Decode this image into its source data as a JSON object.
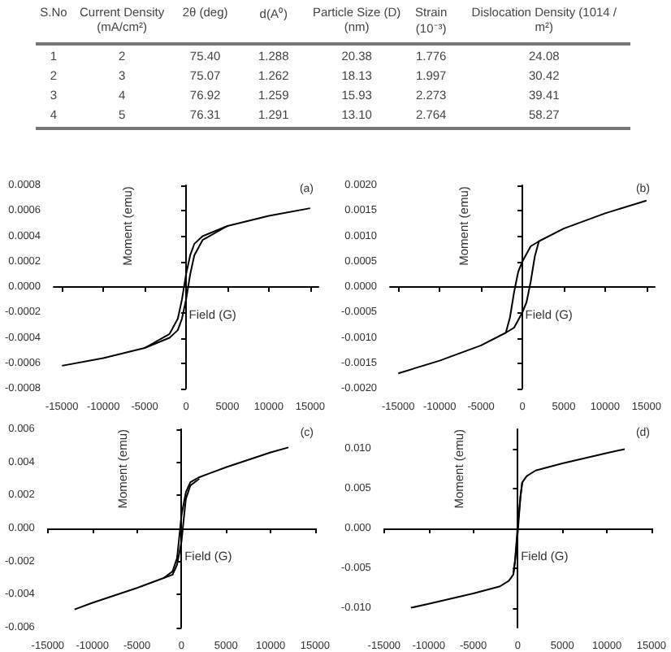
{
  "chart_data": [
    {
      "type": "other",
      "categories": [
        "S.No",
        "Current Density (mA/cm²)",
        "2θ (deg)",
        "d(A⁰)",
        "Particle Size (D)(nm)",
        "Strain (10⁻³)",
        "Dislocation Density (1014 / m²)"
      ],
      "series": [
        {
          "values": [
            1,
            2,
            75.4,
            1.288,
            20.38,
            1.776,
            24.08
          ],
          "value_labels": [
            "1",
            "2",
            "75.40",
            "1.288",
            "20.38",
            "1.776",
            "24.08"
          ]
        },
        {
          "values": [
            2,
            3,
            75.07,
            1.262,
            18.13,
            1.997,
            30.42
          ],
          "value_labels": [
            "2",
            "3",
            "75.07",
            "1.262",
            "18.13",
            "1.997",
            "30.42"
          ]
        },
        {
          "values": [
            3,
            4,
            76.92,
            1.259,
            15.93,
            2.273,
            39.41
          ],
          "value_labels": [
            "3",
            "4",
            "76.92",
            "1.259",
            "15.93",
            "2.273",
            "39.41"
          ]
        },
        {
          "values": [
            4,
            5,
            76.31,
            1.291,
            13.1,
            2.764,
            58.27
          ],
          "value_labels": [
            "4",
            "5",
            "76.31",
            "1.291",
            "13.10",
            "2.764",
            "58.27"
          ]
        }
      ],
      "data_labels": true
    },
    {
      "type": "line",
      "title": "(a)",
      "xlabel": "Field (G)",
      "ylabel": "Moment (emu)",
      "xlim": [
        -16000,
        16000
      ],
      "xticks": [
        -15000,
        -10000,
        -5000,
        0,
        5000,
        10000,
        15000
      ],
      "ylim": [
        -0.0008,
        0.0008
      ],
      "yticks": [
        {
          "value": -0.0008,
          "label": "-0.0008"
        },
        {
          "value": -0.0006,
          "label": "-0.0006"
        },
        {
          "value": -0.0004,
          "label": "-0.0004"
        },
        {
          "value": -0.0002,
          "label": "-0.0002"
        },
        {
          "value": 0,
          "label": "0.0000"
        },
        {
          "value": 0.0002,
          "label": "0.0002"
        },
        {
          "value": 0.0004,
          "label": "0.0004"
        },
        {
          "value": 0.0006,
          "label": "0.0006"
        },
        {
          "value": 0.0008,
          "label": "0.0008"
        }
      ],
      "series": [
        {
          "color": "#000000",
          "x": [
            15000,
            10000,
            5000,
            2000,
            1000,
            500,
            0,
            -500,
            -1000,
            -2000,
            -5000,
            -10000,
            -15000
          ],
          "values": [
            0.00062,
            0.00056,
            0.00048,
            0.0004,
            0.00034,
            0.00025,
            0.0001,
            -0.0001,
            -0.00025,
            -0.00037,
            -0.00048,
            -0.00056,
            -0.00062
          ]
        },
        {
          "color": "#000000",
          "x": [
            -5000,
            -2000,
            -1000,
            -500,
            0,
            500,
            1000,
            2000,
            5000
          ],
          "values": [
            -0.00048,
            -0.0004,
            -0.00034,
            -0.00025,
            -0.0001,
            0.0001,
            0.00025,
            0.00037,
            0.00048
          ]
        }
      ]
    },
    {
      "type": "line",
      "title": "(b)",
      "xlabel": "Field (G)",
      "ylabel": "Moment (emu)",
      "xlim": [
        -16000,
        16000
      ],
      "xticks": [
        -15000,
        -10000,
        -5000,
        0,
        5000,
        10000,
        15000
      ],
      "ylim": [
        -0.002,
        0.002
      ],
      "yticks": [
        {
          "value": -0.002,
          "label": "-0.0020"
        },
        {
          "value": -0.0015,
          "label": "-0.0015"
        },
        {
          "value": -0.001,
          "label": "-0.0010"
        },
        {
          "value": -0.0005,
          "label": "-0.0005"
        },
        {
          "value": 0,
          "label": "0.0000"
        },
        {
          "value": 0.0005,
          "label": "0.0005"
        },
        {
          "value": 0.001,
          "label": "0.0010"
        },
        {
          "value": 0.0015,
          "label": "0.0015"
        },
        {
          "value": 0.002,
          "label": "0.0020"
        }
      ],
      "series": [
        {
          "color": "#000000",
          "x": [
            15000,
            10000,
            5000,
            2000,
            1000,
            0,
            -500,
            -1000,
            -1500,
            -2000,
            -5000,
            -10000,
            -15000
          ],
          "values": [
            0.0017,
            0.00145,
            0.00115,
            0.0009,
            0.0008,
            0.0005,
            0.0003,
            -0.0001,
            -0.0006,
            -0.0009,
            -0.00115,
            -0.00145,
            -0.0017
          ]
        },
        {
          "color": "#000000",
          "x": [
            -2000,
            -1000,
            0,
            500,
            1000,
            1500,
            2000
          ],
          "values": [
            -0.0009,
            -0.0008,
            -0.0005,
            -0.0003,
            0.0001,
            0.0006,
            0.0009
          ]
        }
      ]
    },
    {
      "type": "line",
      "title": "(c)",
      "xlabel": "Field (G)",
      "ylabel": "Moment (emu)",
      "xlim": [
        -15000,
        15000
      ],
      "xticks": [
        -15000,
        -10000,
        -5000,
        0,
        5000,
        10000,
        15000
      ],
      "ylim": [
        -0.006,
        0.006
      ],
      "yticks": [
        {
          "value": -0.006,
          "label": "-0.006"
        },
        {
          "value": -0.004,
          "label": "-0.004"
        },
        {
          "value": -0.002,
          "label": "-0.002"
        },
        {
          "value": 0,
          "label": "0.000"
        },
        {
          "value": 0.002,
          "label": "0.002"
        },
        {
          "value": 0.004,
          "label": "0.004"
        },
        {
          "value": 0.006,
          "label": "0.006"
        }
      ],
      "series": [
        {
          "color": "#000000",
          "x": [
            12000,
            10000,
            5000,
            2000,
            1000,
            500,
            0,
            -300,
            -500,
            -1000,
            -2000,
            -5000,
            -10000,
            -12000
          ],
          "values": [
            0.0049,
            0.0046,
            0.0037,
            0.0031,
            0.0028,
            0.0022,
            0.0008,
            -0.0008,
            -0.0018,
            -0.0026,
            -0.003,
            -0.0036,
            -0.0045,
            -0.0049
          ]
        },
        {
          "color": "#000000",
          "x": [
            -2000,
            -1000,
            -500,
            0,
            300,
            500,
            1000,
            2000
          ],
          "values": [
            -0.003,
            -0.0028,
            -0.0022,
            -0.0008,
            0.0008,
            0.0018,
            0.0026,
            0.003
          ]
        }
      ]
    },
    {
      "type": "line",
      "title": "(d)",
      "xlabel": "Field (G)",
      "ylabel": "Moment (emu)",
      "xlim": [
        -15000,
        15000
      ],
      "xticks": [
        -15000,
        -10000,
        -5000,
        0,
        5000,
        10000,
        15000
      ],
      "ylim": [
        -0.0125,
        0.0125
      ],
      "yticks": [
        {
          "value": -0.01,
          "label": "-0.010"
        },
        {
          "value": -0.005,
          "label": "-0.005"
        },
        {
          "value": 0,
          "label": "0.000"
        },
        {
          "value": 0.005,
          "label": "0.005"
        },
        {
          "value": 0.01,
          "label": "0.010"
        }
      ],
      "series": [
        {
          "color": "#000000",
          "x": [
            12000,
            10000,
            5000,
            2000,
            1000,
            500,
            300,
            0,
            -300,
            -500,
            -1000,
            -2000,
            -5000,
            -10000,
            -12000
          ],
          "values": [
            0.01,
            0.0095,
            0.0082,
            0.0073,
            0.0066,
            0.0058,
            0.004,
            0.0005,
            -0.004,
            -0.0058,
            -0.0066,
            -0.0073,
            -0.0082,
            -0.0095,
            -0.01
          ]
        },
        {
          "color": "#000000",
          "x": [
            -500,
            -300,
            0,
            300,
            500
          ],
          "values": [
            -0.0058,
            -0.004,
            -0.0005,
            0.004,
            0.0058
          ]
        }
      ]
    }
  ]
}
